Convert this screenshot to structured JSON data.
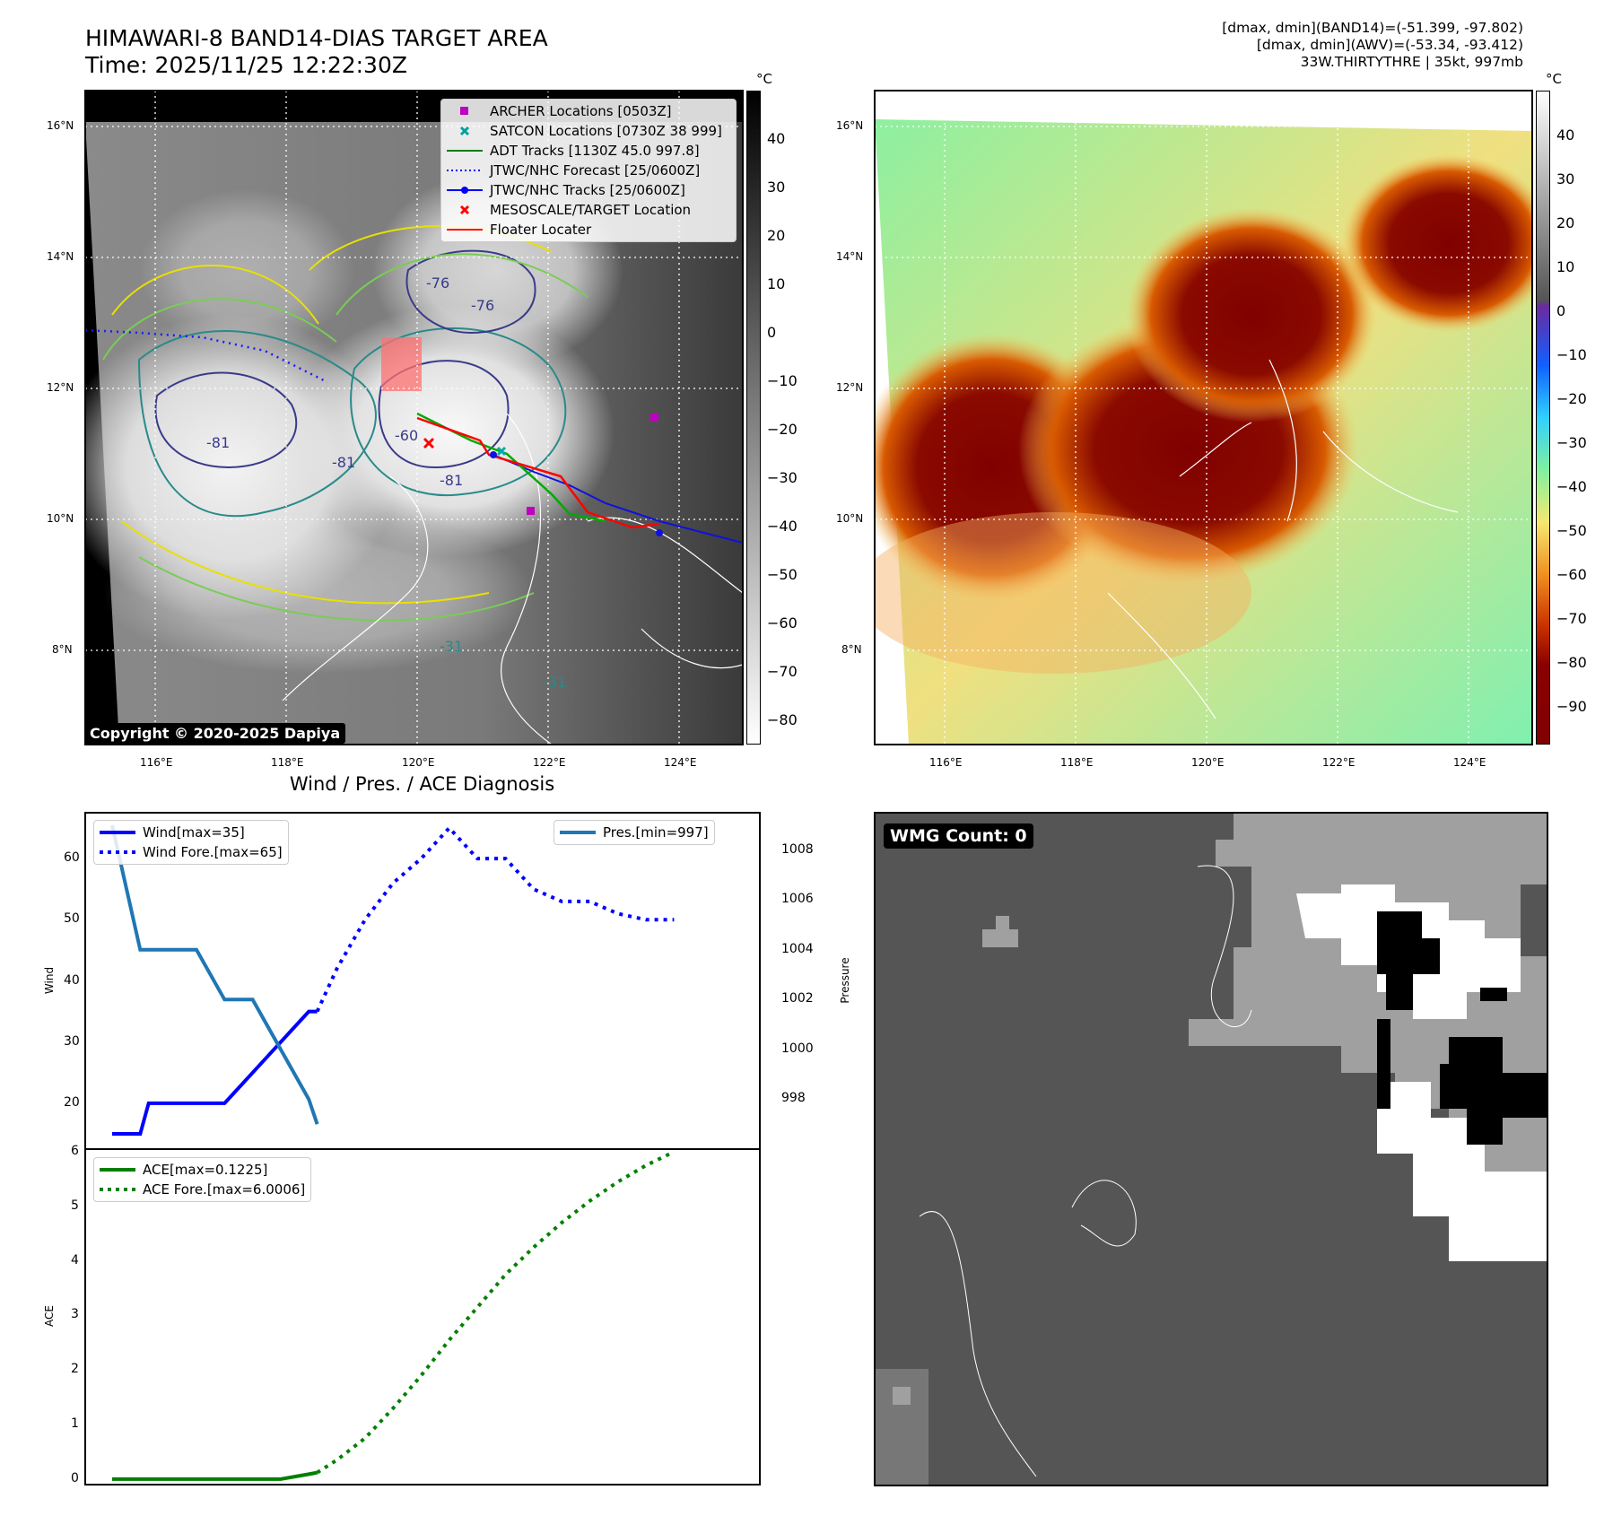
{
  "header": {
    "title_line1": "HIMAWARI-8 BAND14-DIAS TARGET AREA",
    "title_line2": "Time: 2025/11/25 12:22:30Z",
    "info_line1": "[dmax, dmin](BAND14)=(-51.399, -97.802)",
    "info_line2": "[dmax, dmin](AWV)=(-53.34, -93.412)",
    "info_line3": "33W.THIRTYTHRE | 35kt, 997mb"
  },
  "map_axes": {
    "lat_labels": [
      "16°N",
      "14°N",
      "12°N",
      "10°N",
      "8°N"
    ],
    "lon_labels": [
      "116°E",
      "118°E",
      "120°E",
      "122°E",
      "124°E"
    ]
  },
  "colorbar_left": {
    "unit": "°C",
    "ticks": [
      "40",
      "30",
      "20",
      "10",
      "0",
      "−10",
      "−20",
      "−30",
      "−40",
      "−50",
      "−60",
      "−70",
      "−80"
    ]
  },
  "colorbar_right": {
    "unit": "°C",
    "ticks": [
      "40",
      "30",
      "20",
      "10",
      "0",
      "−10",
      "−20",
      "−30",
      "−40",
      "−50",
      "−60",
      "−70",
      "−80",
      "−90"
    ]
  },
  "map_legend": [
    {
      "label": "ARCHER Locations [0503Z]",
      "color": "#c000c0",
      "kind": "square"
    },
    {
      "label": "SATCON Locations [0730Z 38 999]",
      "color": "#00a0a0",
      "kind": "x"
    },
    {
      "label": "ADT Tracks [1130Z 45.0 997.8]",
      "color": "#008000",
      "kind": "line"
    },
    {
      "label": "JTWC/NHC Forecast [25/0600Z]",
      "color": "#0000ff",
      "kind": "dotted"
    },
    {
      "label": "JTWC/NHC Tracks [25/0600Z]",
      "color": "#0000ff",
      "kind": "line-dot"
    },
    {
      "label": "MESOSCALE/TARGET Location",
      "color": "#ff0000",
      "kind": "x"
    },
    {
      "label": "Floater Locater",
      "color": "#ff0000",
      "kind": "line"
    }
  ],
  "contour_labels": [
    "-81",
    "-81",
    "-81",
    "-76",
    "-76",
    "-60",
    "-31",
    "-31"
  ],
  "copyright": "Copyright © 2020-2025 Dapiya",
  "diagnosis_title": "Wind / Pres. / ACE Diagnosis",
  "wmg_count": "WMG Count: 0",
  "chart_data": [
    {
      "type": "line",
      "ylabel": "Wind",
      "ylabel_right": "Pressure",
      "yticks": [
        "20",
        "30",
        "40",
        "50",
        "60"
      ],
      "yticks_right": [
        "998",
        "1000",
        "1002",
        "1004",
        "1006",
        "1008"
      ],
      "ylim": [
        12.5,
        67.5
      ],
      "ylim_right": [
        996.0,
        1009.5
      ],
      "series": [
        {
          "name": "Wind[max=35]",
          "color": "#0000ff",
          "style": "solid",
          "x": [
            0,
            1,
            1.3,
            2,
            3,
            4,
            5,
            6,
            7,
            7.3
          ],
          "y": [
            15,
            15,
            20,
            20,
            20,
            20,
            25,
            30,
            35,
            35
          ]
        },
        {
          "name": "Wind Fore.[max=65]",
          "color": "#0000ff",
          "style": "dotted",
          "x": [
            7.3,
            8,
            9,
            10,
            11,
            12,
            13,
            14,
            15,
            16,
            17,
            18,
            19,
            20
          ],
          "y": [
            35,
            42,
            50,
            56,
            60,
            65,
            60,
            60,
            55,
            53,
            53,
            51,
            50,
            50
          ]
        },
        {
          "name": "Pres.[min=997]",
          "color": "#1f77b4",
          "style": "solid",
          "axis": "right",
          "x": [
            0,
            1,
            2,
            3,
            4,
            5,
            6,
            7,
            7.3
          ],
          "y": [
            1009,
            1004,
            1004,
            1004,
            1002,
            1002,
            1000,
            998,
            997
          ]
        }
      ]
    },
    {
      "type": "line",
      "ylabel": "ACE",
      "yticks": [
        "0",
        "1",
        "2",
        "3",
        "4",
        "5",
        "6"
      ],
      "ylim": [
        -0.1,
        6.05
      ],
      "series": [
        {
          "name": "ACE[max=0.1225]",
          "color": "#008000",
          "style": "solid",
          "x": [
            0,
            1,
            2,
            3,
            4,
            5,
            6,
            7,
            7.3
          ],
          "y": [
            0,
            0,
            0,
            0,
            0,
            0,
            0,
            0.09,
            0.12
          ]
        },
        {
          "name": "ACE Fore.[max=6.0006]",
          "color": "#008000",
          "style": "dotted",
          "x": [
            7.3,
            8,
            9,
            10,
            11,
            12,
            13,
            14,
            15,
            16,
            17,
            18,
            19,
            20
          ],
          "y": [
            0.12,
            0.35,
            0.75,
            1.3,
            1.9,
            2.55,
            3.15,
            3.75,
            4.25,
            4.7,
            5.1,
            5.45,
            5.75,
            6.0
          ]
        }
      ]
    }
  ]
}
